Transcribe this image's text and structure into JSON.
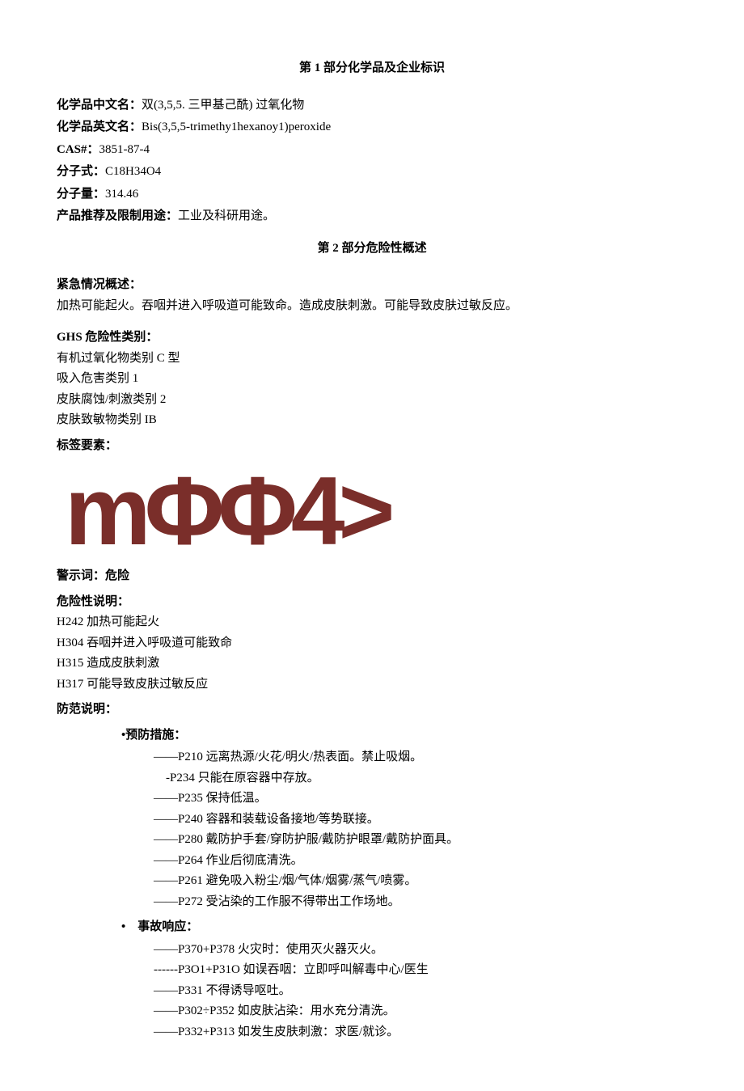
{
  "section1": {
    "title": "第 1 部分化学品及企业标识",
    "fields": {
      "name_cn_label": "化学品中文名：",
      "name_cn_value": "双(3,5,5. 三甲基己酰) 过氧化物",
      "name_en_label": "化学品英文名：",
      "name_en_value": "Bis(3,5,5-trimethy1hexanoy1)peroxide",
      "cas_label": "CAS#：",
      "cas_value": "3851-87-4",
      "formula_label": "分子式：",
      "formula_value": "C18H34O4",
      "mw_label": "分子量：",
      "mw_value": "314.46",
      "use_label": "产品推荐及限制用途：",
      "use_value": "工业及科研用途。"
    }
  },
  "section2": {
    "title": "第 2 部分危险性概述",
    "emergency_label": "紧急情况概述：",
    "emergency_value": "加热可能起火。吞咽并进入呼吸道可能致命。造成皮肤刺激。可能导致皮肤过敏反应。",
    "ghs_label": "GHS 危险性类别：",
    "ghs_lines": [
      "有机过氧化物类别 C 型",
      "吸入危害类别 1",
      "皮肤腐蚀/刺激类别 2",
      "皮肤致敏物类别 IB"
    ],
    "label_elements": "标签要素：",
    "pictogram_text": "mΦΦ4>",
    "signal_word_label": "警示词：",
    "signal_word_value": "危险",
    "hazard_stmt_label": "危险性说明：",
    "hazard_lines": [
      "H242 加热可能起火",
      "H304 吞咽并进入呼吸道可能致命",
      "H315 造成皮肤刺激",
      "H317 可能导致皮肤过敏反应"
    ],
    "precaution_label": "防范说明：",
    "prevention_label": "•预防措施：",
    "prevention_lines": [
      "——P210 远离热源/火花/明火/热表面。禁止吸烟。",
      "　-P234 只能在原容器中存放。",
      "——P235 保持低温。",
      "——P240 容器和装载设备接地/等势联接。",
      "——P280 戴防护手套/穿防护服/戴防护眼罩/戴防护面具。",
      "——P264 作业后彻底清洗。",
      "——P261 避免吸入粉尘/烟/气体/烟雾/蒸气/喷雾。",
      "——P272 受沾染的工作服不得带出工作场地。"
    ],
    "response_label": "•　事故响应：",
    "response_lines": [
      "——P370+P378 火灾时：使用灭火器灭火。",
      "------P3O1+P31O 如误吞咽：立即呼叫解毒中心/医生",
      "——P331 不得诱导呕吐。",
      "——P302÷P352 如皮肤沾染：用水充分清洗。",
      "——P332+P313 如发生皮肤刺激：求医/就诊。"
    ]
  },
  "colors": {
    "text": "#000000",
    "background": "#ffffff",
    "pictogram": "#7a2e2a"
  }
}
